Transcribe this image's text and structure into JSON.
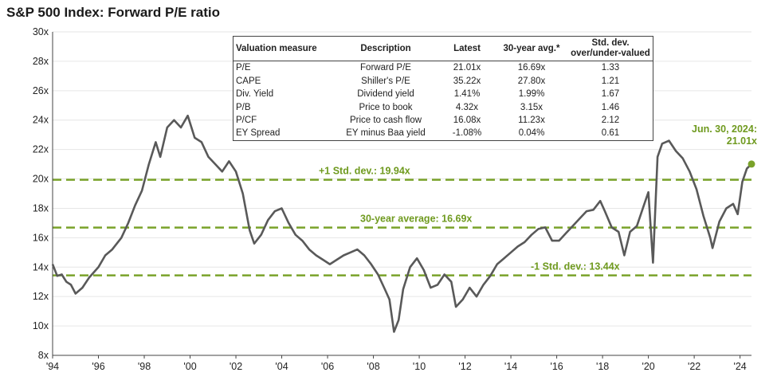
{
  "title": "S&P 500 Index: Forward P/E ratio",
  "table": {
    "headers": [
      "Valuation measure",
      "Description",
      "Latest",
      "30-year avg.*",
      "Std. dev. over/under-valued"
    ],
    "rows": [
      [
        "P/E",
        "Forward P/E",
        "21.01x",
        "16.69x",
        "1.33"
      ],
      [
        "CAPE",
        "Shiller's P/E",
        "35.22x",
        "27.80x",
        "1.21"
      ],
      [
        "Div. Yield",
        "Dividend yield",
        "1.41%",
        "1.99%",
        "1.67"
      ],
      [
        "P/B",
        "Price to book",
        "4.32x",
        "3.15x",
        "1.46"
      ],
      [
        "P/CF",
        "Price to cash flow",
        "16.08x",
        "11.23x",
        "2.12"
      ],
      [
        "EY Spread",
        "EY minus Baa yield",
        "-1.08%",
        "0.04%",
        "0.61"
      ]
    ]
  },
  "chart_data": {
    "type": "line",
    "title": "S&P 500 Index: Forward P/E ratio",
    "xlim": [
      1994,
      2024.5
    ],
    "ylim": [
      8,
      30
    ],
    "y_ticks": [
      8,
      10,
      12,
      14,
      16,
      18,
      20,
      22,
      24,
      26,
      28,
      30
    ],
    "y_tick_labels": [
      "8x",
      "10x",
      "12x",
      "14x",
      "16x",
      "18x",
      "20x",
      "22x",
      "24x",
      "26x",
      "28x",
      "30x"
    ],
    "x_ticks": [
      1994,
      1996,
      1998,
      2000,
      2002,
      2004,
      2006,
      2008,
      2010,
      2012,
      2014,
      2016,
      2018,
      2020,
      2022,
      2024
    ],
    "x_tick_labels": [
      "'94",
      "'96",
      "'98",
      "'00",
      "'02",
      "'04",
      "'06",
      "'08",
      "'10",
      "'12",
      "'14",
      "'16",
      "'18",
      "'20",
      "'22",
      "'24"
    ],
    "grid": "horizontal",
    "line_color": "#595959",
    "ref_color": "#7aa22a",
    "series": [
      {
        "x": [
          1994.0,
          1994.2,
          1994.4,
          1994.6,
          1994.8,
          1995.0,
          1995.3,
          1995.6,
          1996.0,
          1996.3,
          1996.6,
          1997.0,
          1997.3,
          1997.6,
          1997.9,
          1998.2,
          1998.5,
          1998.7,
          1999.0,
          1999.3,
          1999.6,
          1999.9,
          2000.2,
          2000.5,
          2000.8,
          2001.1,
          2001.4,
          2001.7,
          2002.0,
          2002.3,
          2002.6,
          2002.8,
          2003.1,
          2003.4,
          2003.7,
          2004.0,
          2004.3,
          2004.6,
          2004.9,
          2005.2,
          2005.5,
          2005.8,
          2006.1,
          2006.4,
          2006.7,
          2007.0,
          2007.3,
          2007.6,
          2007.9,
          2008.2,
          2008.5,
          2008.7,
          2008.9,
          2009.1,
          2009.3,
          2009.6,
          2009.9,
          2010.2,
          2010.5,
          2010.8,
          2011.1,
          2011.4,
          2011.6,
          2011.9,
          2012.2,
          2012.5,
          2012.8,
          2013.1,
          2013.4,
          2013.7,
          2014.0,
          2014.3,
          2014.6,
          2014.9,
          2015.2,
          2015.5,
          2015.8,
          2016.1,
          2016.4,
          2016.7,
          2017.0,
          2017.3,
          2017.6,
          2017.9,
          2018.1,
          2018.4,
          2018.7,
          2018.95,
          2019.2,
          2019.5,
          2019.8,
          2020.0,
          2020.2,
          2020.4,
          2020.6,
          2020.9,
          2021.2,
          2021.5,
          2021.8,
          2022.1,
          2022.4,
          2022.7,
          2022.8,
          2023.1,
          2023.4,
          2023.7,
          2023.9,
          2024.1,
          2024.3,
          2024.5
        ],
        "y": [
          14.2,
          13.4,
          13.5,
          13.0,
          12.8,
          12.2,
          12.6,
          13.3,
          14.0,
          14.8,
          15.2,
          16.0,
          17.0,
          18.2,
          19.2,
          21.0,
          22.5,
          21.5,
          23.5,
          24.0,
          23.5,
          24.3,
          22.8,
          22.5,
          21.5,
          21.0,
          20.5,
          21.2,
          20.5,
          19.0,
          16.5,
          15.6,
          16.2,
          17.2,
          17.8,
          18.0,
          17.0,
          16.2,
          15.8,
          15.2,
          14.8,
          14.5,
          14.2,
          14.5,
          14.8,
          15.0,
          15.2,
          14.8,
          14.2,
          13.5,
          12.5,
          11.8,
          9.6,
          10.4,
          12.5,
          14.0,
          14.6,
          13.8,
          12.6,
          12.8,
          13.5,
          13.0,
          11.3,
          11.8,
          12.6,
          12.0,
          12.8,
          13.4,
          14.2,
          14.6,
          15.0,
          15.4,
          15.7,
          16.2,
          16.6,
          16.7,
          15.8,
          15.8,
          16.3,
          16.8,
          17.3,
          17.8,
          17.9,
          18.5,
          17.8,
          16.7,
          16.4,
          14.8,
          16.4,
          16.8,
          18.2,
          19.1,
          14.3,
          21.5,
          22.4,
          22.6,
          21.9,
          21.4,
          20.5,
          19.3,
          17.5,
          16.0,
          15.3,
          17.1,
          18.0,
          18.3,
          17.6,
          19.8,
          20.7,
          21.01
        ]
      }
    ],
    "reference_lines": [
      {
        "y": 19.94,
        "label": "+1 Std. dev.: 19.94x"
      },
      {
        "y": 16.69,
        "label": "30-year average: 16.69x"
      },
      {
        "y": 13.44,
        "label": "-1 Std. dev.: 13.44x"
      }
    ],
    "latest": {
      "x": 2024.5,
      "y": 21.01,
      "label_line1": "Jun. 30, 2024:",
      "label_line2": "21.01x"
    }
  }
}
